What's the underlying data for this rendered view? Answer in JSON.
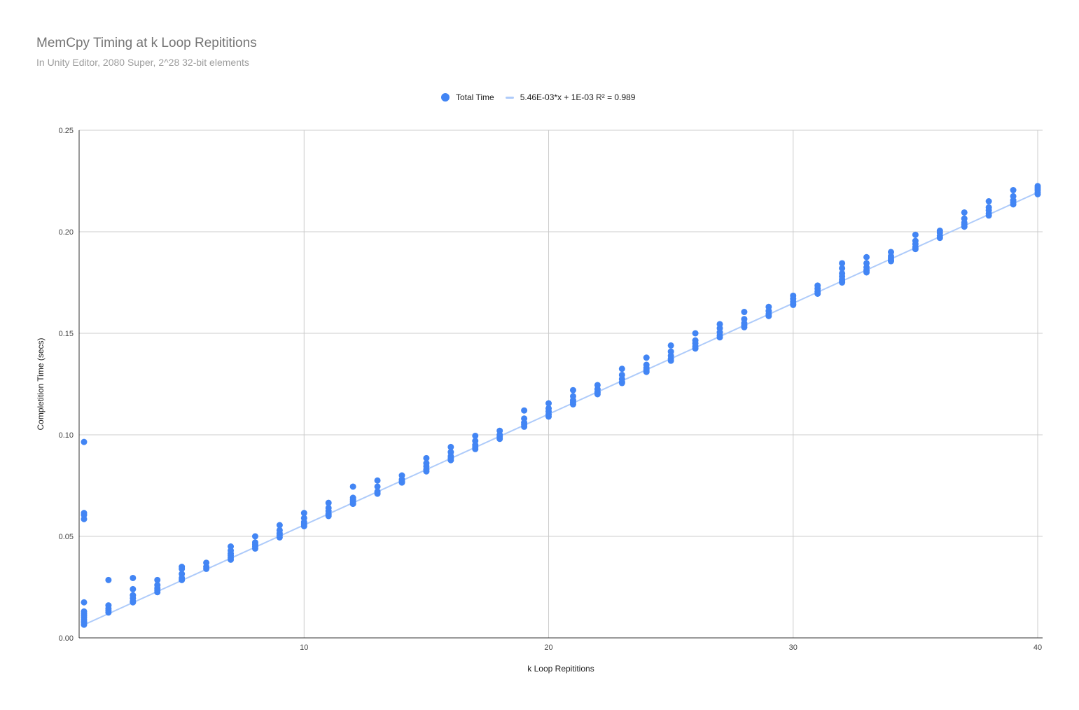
{
  "colors": {
    "series": "#4285f4",
    "trendline": "#aecbfa",
    "grid": "#cccccc",
    "axis": "#333333"
  },
  "chart_data": {
    "type": "scatter",
    "title": "MemCpy Timing at k Loop Repititions",
    "subtitle": "In Unity Editor, 2080 Super, 2^28 32-bit elements",
    "xlabel": "k Loop Repititions",
    "ylabel": "Completition Time (secs)",
    "xlim": [
      0.8,
      40.2
    ],
    "ylim": [
      0,
      0.25
    ],
    "x_ticks": [
      10,
      20,
      30,
      40
    ],
    "x_tick_labels": [
      "10",
      "20",
      "30",
      "40"
    ],
    "y_ticks": [
      0,
      0.05,
      0.1,
      0.15,
      0.2,
      0.25
    ],
    "y_tick_labels": [
      "0.00",
      "0.05",
      "0.10",
      "0.15",
      "0.20",
      "0.25"
    ],
    "grid": true,
    "legend_position": "top-center",
    "series": [
      {
        "name": "Total Time",
        "points": [
          [
            1,
            0.0965
          ],
          [
            1,
            0.0615
          ],
          [
            1,
            0.0605
          ],
          [
            1,
            0.0585
          ],
          [
            1,
            0.0175
          ],
          [
            1,
            0.013
          ],
          [
            1,
            0.012
          ],
          [
            1,
            0.011
          ],
          [
            1,
            0.01
          ],
          [
            1,
            0.009
          ],
          [
            1,
            0.008
          ],
          [
            1,
            0.0075
          ],
          [
            1,
            0.0065
          ],
          [
            2,
            0.0285
          ],
          [
            2,
            0.016
          ],
          [
            2,
            0.0145
          ],
          [
            2,
            0.0135
          ],
          [
            2,
            0.0125
          ],
          [
            3,
            0.0295
          ],
          [
            3,
            0.024
          ],
          [
            3,
            0.021
          ],
          [
            3,
            0.0195
          ],
          [
            3,
            0.018
          ],
          [
            3,
            0.0175
          ],
          [
            4,
            0.0285
          ],
          [
            4,
            0.026
          ],
          [
            4,
            0.0245
          ],
          [
            4,
            0.0235
          ],
          [
            4,
            0.0225
          ],
          [
            5,
            0.035
          ],
          [
            5,
            0.034
          ],
          [
            5,
            0.0315
          ],
          [
            5,
            0.0295
          ],
          [
            5,
            0.0285
          ],
          [
            6,
            0.037
          ],
          [
            6,
            0.035
          ],
          [
            6,
            0.034
          ],
          [
            7,
            0.045
          ],
          [
            7,
            0.043
          ],
          [
            7,
            0.0415
          ],
          [
            7,
            0.0405
          ],
          [
            7,
            0.0395
          ],
          [
            7,
            0.0385
          ],
          [
            8,
            0.05
          ],
          [
            8,
            0.047
          ],
          [
            8,
            0.046
          ],
          [
            8,
            0.045
          ],
          [
            8,
            0.044
          ],
          [
            9,
            0.0555
          ],
          [
            9,
            0.053
          ],
          [
            9,
            0.0515
          ],
          [
            9,
            0.0505
          ],
          [
            9,
            0.0495
          ],
          [
            10,
            0.0615
          ],
          [
            10,
            0.059
          ],
          [
            10,
            0.057
          ],
          [
            10,
            0.056
          ],
          [
            10,
            0.055
          ],
          [
            11,
            0.0665
          ],
          [
            11,
            0.064
          ],
          [
            11,
            0.0625
          ],
          [
            11,
            0.061
          ],
          [
            11,
            0.06
          ],
          [
            12,
            0.0745
          ],
          [
            12,
            0.069
          ],
          [
            12,
            0.068
          ],
          [
            12,
            0.067
          ],
          [
            12,
            0.066
          ],
          [
            13,
            0.0775
          ],
          [
            13,
            0.0745
          ],
          [
            13,
            0.072
          ],
          [
            13,
            0.071
          ],
          [
            14,
            0.08
          ],
          [
            14,
            0.078
          ],
          [
            14,
            0.077
          ],
          [
            14,
            0.0765
          ],
          [
            15,
            0.0885
          ],
          [
            15,
            0.086
          ],
          [
            15,
            0.0845
          ],
          [
            15,
            0.083
          ],
          [
            15,
            0.082
          ],
          [
            16,
            0.094
          ],
          [
            16,
            0.0915
          ],
          [
            16,
            0.0895
          ],
          [
            16,
            0.0885
          ],
          [
            16,
            0.0875
          ],
          [
            17,
            0.0995
          ],
          [
            17,
            0.097
          ],
          [
            17,
            0.095
          ],
          [
            17,
            0.094
          ],
          [
            17,
            0.093
          ],
          [
            18,
            0.102
          ],
          [
            18,
            0.1
          ],
          [
            18,
            0.099
          ],
          [
            18,
            0.098
          ],
          [
            19,
            0.112
          ],
          [
            19,
            0.108
          ],
          [
            19,
            0.106
          ],
          [
            19,
            0.105
          ],
          [
            19,
            0.104
          ],
          [
            20,
            0.1155
          ],
          [
            20,
            0.113
          ],
          [
            20,
            0.1115
          ],
          [
            20,
            0.11
          ],
          [
            20,
            0.109
          ],
          [
            21,
            0.122
          ],
          [
            21,
            0.119
          ],
          [
            21,
            0.117
          ],
          [
            21,
            0.116
          ],
          [
            21,
            0.115
          ],
          [
            22,
            0.1245
          ],
          [
            22,
            0.1225
          ],
          [
            22,
            0.121
          ],
          [
            22,
            0.12
          ],
          [
            23,
            0.1325
          ],
          [
            23,
            0.1295
          ],
          [
            23,
            0.1275
          ],
          [
            23,
            0.126
          ],
          [
            23,
            0.1255
          ],
          [
            24,
            0.138
          ],
          [
            24,
            0.1345
          ],
          [
            24,
            0.133
          ],
          [
            24,
            0.132
          ],
          [
            24,
            0.131
          ],
          [
            25,
            0.144
          ],
          [
            25,
            0.141
          ],
          [
            25,
            0.139
          ],
          [
            25,
            0.1375
          ],
          [
            25,
            0.1365
          ],
          [
            26,
            0.15
          ],
          [
            26,
            0.1465
          ],
          [
            26,
            0.145
          ],
          [
            26,
            0.1435
          ],
          [
            26,
            0.1425
          ],
          [
            27,
            0.1545
          ],
          [
            27,
            0.1525
          ],
          [
            27,
            0.1505
          ],
          [
            27,
            0.149
          ],
          [
            27,
            0.148
          ],
          [
            28,
            0.1605
          ],
          [
            28,
            0.157
          ],
          [
            28,
            0.155
          ],
          [
            28,
            0.154
          ],
          [
            28,
            0.153
          ],
          [
            29,
            0.163
          ],
          [
            29,
            0.161
          ],
          [
            29,
            0.1595
          ],
          [
            29,
            0.1585
          ],
          [
            30,
            0.1685
          ],
          [
            30,
            0.167
          ],
          [
            30,
            0.1655
          ],
          [
            30,
            0.1645
          ],
          [
            30,
            0.164
          ],
          [
            31,
            0.1735
          ],
          [
            31,
            0.172
          ],
          [
            31,
            0.1705
          ],
          [
            31,
            0.1695
          ],
          [
            32,
            0.1845
          ],
          [
            32,
            0.182
          ],
          [
            32,
            0.1795
          ],
          [
            32,
            0.178
          ],
          [
            32,
            0.1765
          ],
          [
            32,
            0.1755
          ],
          [
            32,
            0.175
          ],
          [
            33,
            0.1875
          ],
          [
            33,
            0.1845
          ],
          [
            33,
            0.1825
          ],
          [
            33,
            0.181
          ],
          [
            33,
            0.18
          ],
          [
            34,
            0.19
          ],
          [
            34,
            0.188
          ],
          [
            34,
            0.187
          ],
          [
            34,
            0.186
          ],
          [
            34,
            0.1855
          ],
          [
            35,
            0.1985
          ],
          [
            35,
            0.1955
          ],
          [
            35,
            0.194
          ],
          [
            35,
            0.1925
          ],
          [
            35,
            0.1915
          ],
          [
            36,
            0.2005
          ],
          [
            36,
            0.1995
          ],
          [
            36,
            0.198
          ],
          [
            36,
            0.197
          ],
          [
            37,
            0.2095
          ],
          [
            37,
            0.2065
          ],
          [
            37,
            0.2045
          ],
          [
            37,
            0.2035
          ],
          [
            37,
            0.2025
          ],
          [
            38,
            0.215
          ],
          [
            38,
            0.212
          ],
          [
            38,
            0.2105
          ],
          [
            38,
            0.209
          ],
          [
            38,
            0.208
          ],
          [
            39,
            0.2205
          ],
          [
            39,
            0.2175
          ],
          [
            39,
            0.2155
          ],
          [
            39,
            0.2145
          ],
          [
            39,
            0.2135
          ],
          [
            40,
            0.2225
          ],
          [
            40,
            0.2215
          ],
          [
            40,
            0.2205
          ],
          [
            40,
            0.2195
          ],
          [
            40,
            0.2185
          ]
        ]
      }
    ],
    "trendline": {
      "name": "5.46E-03*x + 1E-03 R² = 0.989",
      "slope": 0.00546,
      "intercept": 0.001,
      "r2": 0.989
    }
  }
}
